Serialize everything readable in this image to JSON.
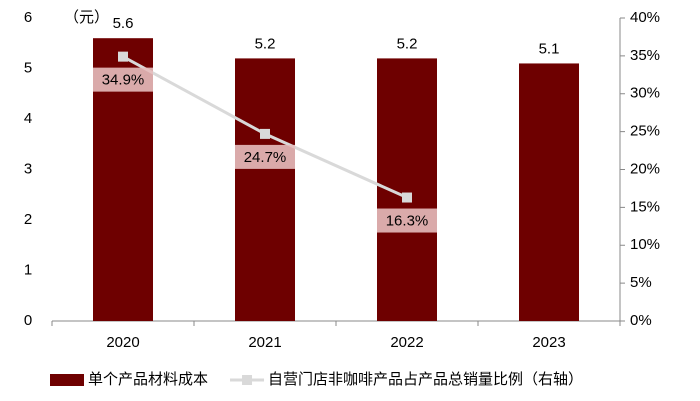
{
  "chart_data": {
    "type": "bar",
    "y_unit": "（元）",
    "categories": [
      "2020",
      "2021",
      "2022",
      "2023"
    ],
    "ylim": [
      0,
      6
    ],
    "yticks": [
      0,
      1,
      2,
      3,
      4,
      5,
      6
    ],
    "y2lim": [
      0,
      40
    ],
    "y2ticks": [
      {
        "value": 0,
        "label": "0%"
      },
      {
        "value": 5,
        "label": "5%"
      },
      {
        "value": 10,
        "label": "10%"
      },
      {
        "value": 15,
        "label": "15%"
      },
      {
        "value": 20,
        "label": "20%"
      },
      {
        "value": 25,
        "label": "25%"
      },
      {
        "value": 30,
        "label": "30%"
      },
      {
        "value": 35,
        "label": "35%"
      },
      {
        "value": 40,
        "label": "40%"
      }
    ],
    "series": [
      {
        "name": "单个产品材料成本",
        "type": "bar",
        "color": "#6e0000",
        "values": [
          5.6,
          5.2,
          5.2,
          5.1
        ]
      },
      {
        "name": "自营门店非咖啡产品占产品总销量比例（右轴）",
        "type": "line",
        "axis": "y2",
        "color": "#d9d9d9",
        "values": [
          34.9,
          24.7,
          16.3,
          null
        ],
        "value_labels": [
          "34.9%",
          "24.7%",
          "16.3%",
          null
        ]
      }
    ],
    "legend": "bottom"
  }
}
